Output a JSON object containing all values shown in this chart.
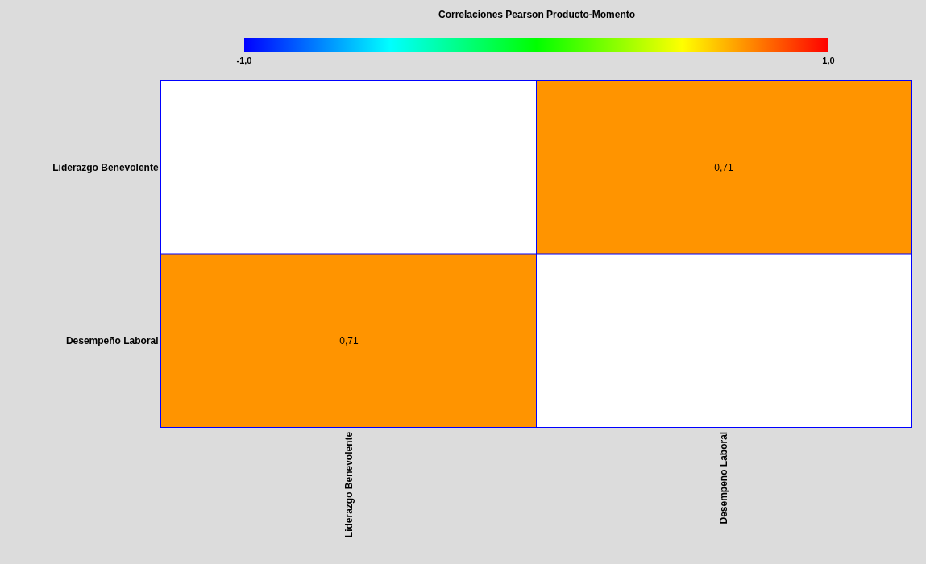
{
  "chart_data": {
    "type": "heatmap",
    "title": "Correlaciones Pearson Producto-Momento",
    "categories": [
      "Liderazgo Benevolente",
      "Desempeño Laboral"
    ],
    "y_categories": [
      "Liderazgo Benevolente",
      "Desempeño Laboral"
    ],
    "cells": [
      [
        null,
        0.71
      ],
      [
        0.71,
        null
      ]
    ],
    "cell_labels": [
      [
        null,
        "0,71"
      ],
      [
        "0,71",
        null
      ]
    ],
    "clim": [
      -1,
      1
    ],
    "cticks": [
      {
        "value": -1,
        "label": "-1,0"
      },
      {
        "value": 1,
        "label": "1,0"
      }
    ]
  }
}
